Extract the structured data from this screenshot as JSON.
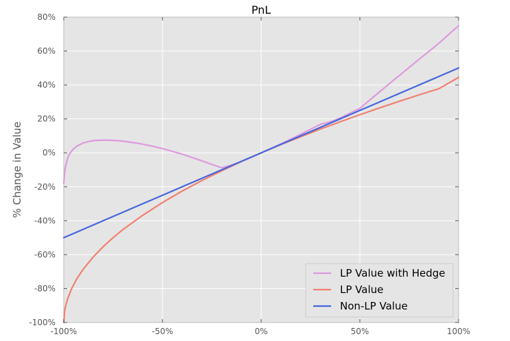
{
  "chart_data": {
    "type": "line",
    "title": "PnL",
    "xlabel": "",
    "ylabel": "% Change in Value",
    "xlim": [
      -100,
      100
    ],
    "ylim": [
      -100,
      80
    ],
    "grid": true,
    "legend_position": "bottom-right",
    "x_ticks": [
      -100,
      -50,
      0,
      50,
      100
    ],
    "x_tick_labels": [
      "-100%",
      "-50%",
      "0%",
      "50%",
      "100%"
    ],
    "y_ticks": [
      -100,
      -80,
      -60,
      -40,
      -20,
      0,
      20,
      40,
      60,
      80
    ],
    "y_tick_labels": [
      "-100%",
      "-80%",
      "-60%",
      "-40%",
      "-20%",
      "0%",
      "20%",
      "40%",
      "60%",
      "80%"
    ],
    "series": [
      {
        "name": "LP Value with Hedge",
        "color": "#dd99dd",
        "x": [
          -100,
          -99.5,
          -99,
          -98,
          -97,
          -96,
          -95,
          -93,
          -90,
          -87,
          -84,
          -80,
          -76,
          -72,
          -68,
          -64,
          -60,
          -55,
          -50,
          -45,
          -40,
          -35,
          -30,
          -25,
          -20,
          -15,
          -10,
          -5,
          0,
          5,
          10,
          15,
          20,
          25,
          30,
          35,
          40,
          50,
          60,
          70,
          80,
          90,
          100
        ],
        "y": [
          -18,
          -11,
          -7.5,
          -3,
          -0.5,
          1,
          2.4,
          4.2,
          5.9,
          6.8,
          7.3,
          7.5,
          7.4,
          7.1,
          6.6,
          5.9,
          5.1,
          3.9,
          2.5,
          0.9,
          -0.8,
          -2.7,
          -4.7,
          -6.8,
          -8.8,
          -7.2,
          -5,
          -2.6,
          0,
          2.6,
          5.3,
          8.1,
          11,
          13.9,
          16.8,
          18.3,
          20.5,
          26.2,
          36,
          45.6,
          55.1,
          64.6,
          75
        ]
      },
      {
        "name": "LP Value",
        "color": "#f08070",
        "x": [
          -100,
          -99.5,
          -99,
          -98,
          -96,
          -93,
          -90,
          -85,
          -80,
          -75,
          -70,
          -60,
          -50,
          -40,
          -30,
          -20,
          -10,
          0,
          10,
          20,
          30,
          40,
          50,
          60,
          70,
          80,
          90,
          100
        ],
        "y": [
          -100,
          -92.9,
          -90,
          -85.9,
          -80,
          -73.5,
          -68.4,
          -61.3,
          -55.3,
          -50,
          -45.2,
          -36.8,
          -29.3,
          -22.5,
          -16.3,
          -10.6,
          -5.1,
          0,
          4.9,
          9.5,
          14,
          18.3,
          22.5,
          26.5,
          30.4,
          34.2,
          37.8,
          44.5
        ]
      },
      {
        "name": "Non-LP Value",
        "color": "#4466dd",
        "x": [
          -100,
          100
        ],
        "y": [
          -50,
          50
        ]
      }
    ]
  }
}
